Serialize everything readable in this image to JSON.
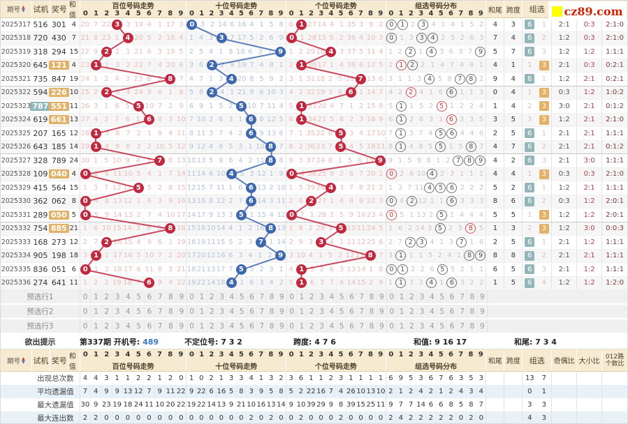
{
  "watermark": {
    "text": "cz89.com"
  },
  "labels": {
    "issue": "期号",
    "test": "试机",
    "prize": "奖号",
    "sum": "和值",
    "tail": "和尾",
    "span": "跨度",
    "zu": "组选",
    "oe": "奇偶比",
    "bs": "大小比",
    "r012_line1": "012路",
    "r012_line2": "个数比",
    "digits": [
      "0",
      "1",
      "2",
      "3",
      "4",
      "5",
      "6",
      "7",
      "8",
      "9"
    ]
  },
  "sections": {
    "bai": "百位号码走势",
    "shi": "十位号码走势",
    "ge": "个位号码走势",
    "zu": "组选号码分布"
  },
  "colors": {
    "hundreds_ball": "#c0283f",
    "tens_ball": "#3e68ad",
    "units_ball": "#c0283f",
    "group6_badge": "#92b6b9",
    "group3_badge": "#e3b168",
    "prize_highlight": "#e2b168",
    "test_highlight": "#8fb8ba",
    "header_bg": "#f6ead0"
  },
  "initial_omission": {
    "bai": [
      19,
      6,
      21,
      0,
      2,
      18,
      3,
      0,
      16,
      2
    ],
    "shi": [
      0,
      2,
      1,
      13,
      5,
      15,
      3,
      0,
      4,
      7
    ],
    "ge": [
      5,
      0,
      26,
      13,
      3,
      0,
      34,
      2,
      8,
      1
    ],
    "zu": [
      0,
      0,
      1,
      0,
      3,
      0,
      3,
      0,
      4,
      1
    ]
  },
  "rows": [
    {
      "issue": "2025317",
      "test": "516",
      "prize": "301",
      "sum": "4",
      "tail": "4",
      "span": "3",
      "zu_type": "6",
      "zu_miss": "1",
      "oe": "2:1",
      "bs": "0:3",
      "r012": "2:1:0"
    },
    {
      "issue": "2025318",
      "test": "720",
      "prize": "430",
      "sum": "7",
      "tail": "7",
      "span": "4",
      "zu_type": "6",
      "zu_miss": "2",
      "oe": "1:2",
      "bs": "0:3",
      "r012": "2:1:0"
    },
    {
      "issue": "2025319",
      "test": "318",
      "prize": "294",
      "sum": "15",
      "tail": "5",
      "span": "7",
      "zu_type": "6",
      "zu_miss": "3",
      "oe": "1:2",
      "bs": "1:2",
      "r012": "1:1:1"
    },
    {
      "issue": "2025320",
      "test": "645",
      "prize": "121",
      "sum": "4",
      "tail": "4",
      "span": "1",
      "zu_type": "3",
      "zu_miss": "1",
      "oe": "2:1",
      "bs": "0:3",
      "r012": "0:2:1"
    },
    {
      "issue": "2025321",
      "test": "735",
      "prize": "847",
      "sum": "19",
      "tail": "9",
      "span": "4",
      "zu_type": "6",
      "zu_miss": "1",
      "oe": "1:2",
      "bs": "2:1",
      "r012": "0:2:1"
    },
    {
      "issue": "2025322",
      "test": "594",
      "prize": "226",
      "sum": "10",
      "tail": "0",
      "span": "4",
      "zu_type": "3",
      "zu_miss": "1",
      "oe": "0:3",
      "bs": "1:2",
      "r012": "1:0:2"
    },
    {
      "issue": "2025323",
      "test": "787",
      "prize": "551",
      "sum": "11",
      "tail": "1",
      "span": "4",
      "zu_type": "3",
      "zu_miss": "2",
      "oe": "3:0",
      "bs": "2:1",
      "r012": "0:1:2"
    },
    {
      "issue": "2025324",
      "test": "619",
      "prize": "661",
      "sum": "13",
      "tail": "3",
      "span": "5",
      "zu_type": "3",
      "zu_miss": "3",
      "oe": "1:2",
      "bs": "2:1",
      "r012": "2:1:0"
    },
    {
      "issue": "2025325",
      "test": "207",
      "prize": "165",
      "sum": "12",
      "tail": "2",
      "span": "5",
      "zu_type": "6",
      "zu_miss": "1",
      "oe": "2:1",
      "bs": "2:1",
      "r012": "1:1:1"
    },
    {
      "issue": "2025326",
      "test": "643",
      "prize": "185",
      "sum": "14",
      "tail": "4",
      "span": "7",
      "zu_type": "6",
      "zu_miss": "2",
      "oe": "2:1",
      "bs": "2:1",
      "r012": "0:1:2"
    },
    {
      "issue": "2025327",
      "test": "328",
      "prize": "789",
      "sum": "24",
      "tail": "4",
      "span": "2",
      "zu_type": "6",
      "zu_miss": "3",
      "oe": "2:1",
      "bs": "3:0",
      "r012": "1:1:1"
    },
    {
      "issue": "2025328",
      "test": "109",
      "prize": "040",
      "sum": "4",
      "tail": "4",
      "span": "4",
      "zu_type": "3",
      "zu_miss": "1",
      "oe": "0:3",
      "bs": "0:3",
      "r012": "2:1:0"
    },
    {
      "issue": "2025329",
      "test": "415",
      "prize": "564",
      "sum": "15",
      "tail": "5",
      "span": "2",
      "zu_type": "6",
      "zu_miss": "1",
      "oe": "1:2",
      "bs": "2:1",
      "r012": "1:1:1"
    },
    {
      "issue": "2025330",
      "test": "362",
      "prize": "062",
      "sum": "8",
      "tail": "8",
      "span": "6",
      "zu_type": "6",
      "zu_miss": "2",
      "oe": "0:3",
      "bs": "1:2",
      "r012": "2:0:1"
    },
    {
      "issue": "2025331",
      "test": "289",
      "prize": "050",
      "sum": "5",
      "tail": "5",
      "span": "5",
      "zu_type": "3",
      "zu_miss": "1",
      "oe": "1:2",
      "bs": "1:2",
      "r012": "2:0:1"
    },
    {
      "issue": "2025332",
      "test": "754",
      "prize": "885",
      "sum": "21",
      "tail": "1",
      "span": "3",
      "zu_type": "3",
      "zu_miss": "2",
      "oe": "1:2",
      "bs": "3:0",
      "r012": "0:0:3"
    },
    {
      "issue": "2025333",
      "test": "168",
      "prize": "273",
      "sum": "12",
      "tail": "2",
      "span": "5",
      "zu_type": "6",
      "zu_miss": "1",
      "oe": "2:1",
      "bs": "1:2",
      "r012": "1:1:1"
    },
    {
      "issue": "2025334",
      "test": "905",
      "prize": "198",
      "sum": "18",
      "tail": "8",
      "span": "8",
      "zu_type": "6",
      "zu_miss": "2",
      "oe": "2:1",
      "bs": "2:1",
      "r012": "1:1:1"
    },
    {
      "issue": "2025335",
      "test": "836",
      "prize": "051",
      "sum": "6",
      "tail": "6",
      "span": "5",
      "zu_type": "6",
      "zu_miss": "3",
      "oe": "2:1",
      "bs": "1:2",
      "r012": "1:1:1"
    },
    {
      "issue": "2025336",
      "test": "274",
      "prize": "641",
      "sum": "11",
      "tail": "1",
      "span": "5",
      "zu_type": "6",
      "zu_miss": "4",
      "oe": "1:2",
      "bs": "1:2",
      "r012": "1:2:0"
    }
  ],
  "preselect": {
    "labels": [
      "预选行1",
      "预选行2",
      "预选行3"
    ]
  },
  "hint": {
    "label": "欲出提示",
    "period": "第337期",
    "open_label": "开机号:",
    "open_value": "489",
    "undet": "不定位号: 7 3 2",
    "span": "跨度: 4 7 6",
    "sum": "和值: 9 16 17",
    "tail": "和尾: 7 3 4"
  },
  "stats": {
    "row_labels": [
      "出现总次数",
      "平均遗漏值",
      "最大遗漏值",
      "最大连出数"
    ],
    "bai": [
      [
        4,
        4,
        3,
        1,
        1,
        2,
        2,
        1,
        2,
        0
      ],
      [
        7,
        4,
        9,
        9,
        13,
        12,
        7,
        9,
        11,
        22
      ],
      [
        30,
        9,
        23,
        19,
        18,
        24,
        11,
        10,
        20,
        22
      ],
      [
        2,
        2,
        0,
        0,
        0,
        0,
        0,
        0,
        0,
        0
      ]
    ],
    "shi": [
      [
        1,
        0,
        2,
        1,
        3,
        3,
        4,
        1,
        3,
        2
      ],
      [
        9,
        22,
        6,
        16,
        5,
        8,
        3,
        9,
        5,
        8
      ],
      [
        19,
        22,
        14,
        13,
        9,
        21,
        10,
        16,
        13,
        14
      ],
      [
        0,
        0,
        0,
        0,
        0,
        0,
        2,
        0,
        2,
        0
      ]
    ],
    "ge": [
      [
        3,
        6,
        1,
        1,
        2,
        3,
        1,
        1,
        1,
        1
      ],
      [
        5,
        2,
        22,
        16,
        7,
        4,
        26,
        10,
        13,
        10
      ],
      [
        9,
        10,
        39,
        29,
        9,
        8,
        39,
        15,
        25,
        11
      ],
      [
        0,
        2,
        0,
        0,
        0,
        2,
        0,
        0,
        0,
        0
      ]
    ],
    "zu": [
      [
        6,
        9,
        5,
        3,
        6,
        7,
        6,
        3,
        5,
        3
      ],
      [
        2,
        1,
        2,
        4,
        2,
        1,
        2,
        4,
        3,
        4
      ],
      [
        9,
        7,
        7,
        14,
        6,
        6,
        8,
        5,
        8,
        7
      ],
      [
        2,
        4,
        2,
        2,
        2,
        2,
        2,
        0,
        2,
        0
      ]
    ],
    "zusel": [
      [
        "13",
        "7"
      ],
      [
        "0",
        "1"
      ],
      [
        "3",
        "3"
      ],
      [
        "4",
        "3"
      ]
    ]
  },
  "chart_data": {
    "type": "table",
    "title": "福彩3D走势图 (3D lottery trend chart)",
    "issues": [
      "2025317",
      "2025318",
      "2025319",
      "2025320",
      "2025321",
      "2025322",
      "2025323",
      "2025324",
      "2025325",
      "2025326",
      "2025327",
      "2025328",
      "2025329",
      "2025330",
      "2025331",
      "2025332",
      "2025333",
      "2025334",
      "2025335",
      "2025336"
    ],
    "test_numbers": [
      "516",
      "720",
      "318",
      "645",
      "735",
      "594",
      "787",
      "619",
      "207",
      "643",
      "328",
      "109",
      "415",
      "362",
      "289",
      "754",
      "168",
      "905",
      "836",
      "274"
    ],
    "prize_numbers": [
      "301",
      "430",
      "294",
      "121",
      "847",
      "226",
      "551",
      "661",
      "165",
      "185",
      "789",
      "040",
      "564",
      "062",
      "050",
      "885",
      "273",
      "198",
      "051",
      "641"
    ],
    "sums": [
      4,
      7,
      15,
      4,
      19,
      10,
      11,
      13,
      12,
      14,
      24,
      4,
      15,
      8,
      5,
      21,
      12,
      18,
      6,
      11
    ],
    "spans": [
      3,
      4,
      7,
      1,
      4,
      4,
      4,
      5,
      5,
      7,
      2,
      4,
      2,
      6,
      5,
      3,
      5,
      8,
      5,
      5
    ],
    "hundreds_drawn": [
      3,
      4,
      2,
      1,
      8,
      2,
      5,
      6,
      1,
      1,
      7,
      0,
      5,
      0,
      0,
      8,
      2,
      1,
      0,
      6
    ],
    "tens_drawn": [
      0,
      3,
      9,
      2,
      4,
      2,
      5,
      6,
      6,
      8,
      8,
      4,
      6,
      6,
      5,
      8,
      7,
      9,
      5,
      4
    ],
    "units_drawn": [
      1,
      0,
      4,
      1,
      7,
      6,
      1,
      1,
      5,
      5,
      9,
      0,
      4,
      2,
      0,
      5,
      3,
      8,
      1,
      1
    ]
  }
}
